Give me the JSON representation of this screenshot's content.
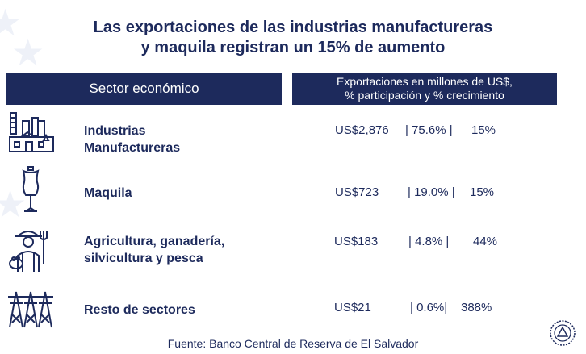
{
  "title": {
    "line1": "Las exportaciones de las industrias manufactureras",
    "line2": "y maquila registran un 15% de aumento"
  },
  "table": {
    "header_left": "Sector económico",
    "header_right_line1": "Exportaciones en millones de US$,",
    "header_right_line2": "% participación y % crecimiento",
    "rows": [
      {
        "icon": "factory-icon",
        "name_line1": "Industrias",
        "name_line2": "Manufactureras",
        "amount": "US$2,876",
        "share": "| 75.6% |",
        "growth": "15%"
      },
      {
        "icon": "dress-form-icon",
        "name_line1": "Maquila",
        "name_line2": "",
        "amount": "US$723",
        "share": "| 19.0% |",
        "growth": "15%"
      },
      {
        "icon": "farmer-icon",
        "name_line1": "Agricultura, ganadería,",
        "name_line2": "silvicultura y pesca",
        "amount": "US$183",
        "share": "| 4.8% |",
        "growth": "44%"
      },
      {
        "icon": "power-tower-icon",
        "name_line1": "Resto de sectores",
        "name_line2": "",
        "amount": "US$21",
        "share": "| 0.6%|",
        "growth": "388%"
      }
    ]
  },
  "source": "Fuente: Banco Central de Reserva de El Salvador",
  "colors": {
    "navy": "#1d2a5c",
    "white": "#ffffff"
  }
}
